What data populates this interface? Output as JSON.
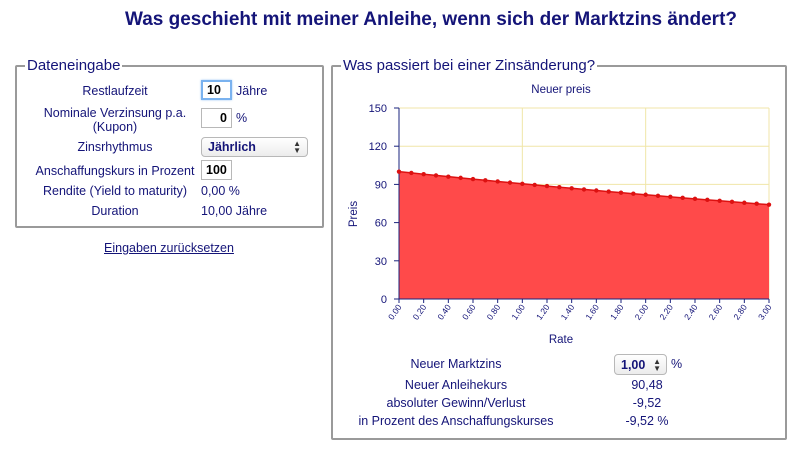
{
  "page": {
    "title": "Was geschieht mit meiner Anleihe, wenn sich der Marktzins ändert?"
  },
  "input": {
    "legend": "Dateneingabe",
    "restlaufzeit_label": "Restlaufzeit",
    "restlaufzeit_value": "10",
    "restlaufzeit_unit": "Jähre",
    "verzinsung_label_line1": "Nominale Verzinsung p.a.",
    "verzinsung_label_line2": "(Kupon)",
    "verzinsung_value": "0",
    "verzinsung_unit": "%",
    "zinsrhythmus_label": "Zinsrhythmus",
    "zinsrhythmus_value": "Jährlich",
    "kurs_label": "Anschaffungskurs in Prozent",
    "kurs_value": "100",
    "rendite_label": "Rendite (Yield to maturity)",
    "rendite_value": "0,00 %",
    "duration_label": "Duration",
    "duration_value": "10,00 Jähre",
    "reset_link": "Eingaben zurücksetzen"
  },
  "chart_box": {
    "legend": "Was passiert bei einer Zinsänderung?"
  },
  "results": {
    "marktzins_label": "Neuer Marktzins",
    "marktzins_value": "1,00",
    "marktzins_unit": "%",
    "anleihekurs_label": "Neuer Anleihekurs",
    "anleihekurs_value": "90,48",
    "gewinn_label": "absoluter Gewinn/Verlust",
    "gewinn_value": "-9,52",
    "prozent_label": "in Prozent des Anschaffungskurses",
    "prozent_value": "-9,52 %"
  },
  "chart_data": {
    "type": "area",
    "title": "Neuer preis",
    "xlabel": "Rate",
    "ylabel": "Preis",
    "xlim": [
      0,
      3
    ],
    "ylim": [
      0,
      150
    ],
    "yticks": [
      0,
      30,
      60,
      90,
      120,
      150
    ],
    "xticks": [
      "0.00",
      "0.20",
      "0.40",
      "0.60",
      "0.80",
      "1.00",
      "1.20",
      "1.40",
      "1.60",
      "1.80",
      "2.00",
      "2.20",
      "2.40",
      "2.60",
      "2.80",
      "3.00"
    ],
    "x": [
      0,
      0.1,
      0.2,
      0.3,
      0.4,
      0.5,
      0.6,
      0.7,
      0.8,
      0.9,
      1.0,
      1.1,
      1.2,
      1.3,
      1.4,
      1.5,
      1.6,
      1.7,
      1.8,
      1.9,
      2.0,
      2.1,
      2.2,
      2.3,
      2.4,
      2.5,
      2.6,
      2.7,
      2.8,
      2.9,
      3.0
    ],
    "y": [
      100,
      99.01,
      98.02,
      97.05,
      96.08,
      95.12,
      94.18,
      93.24,
      92.31,
      91.39,
      90.48,
      89.58,
      88.69,
      87.81,
      86.94,
      86.07,
      85.21,
      84.37,
      83.53,
      82.7,
      81.87,
      81.06,
      80.25,
      79.45,
      78.66,
      77.88,
      77.11,
      76.34,
      75.58,
      74.83,
      74.08
    ],
    "grid": true,
    "colors": {
      "fill": "#ff4a4a",
      "line": "#dd1111",
      "grid": "#f0e6a8",
      "axis": "#1a237e"
    }
  }
}
